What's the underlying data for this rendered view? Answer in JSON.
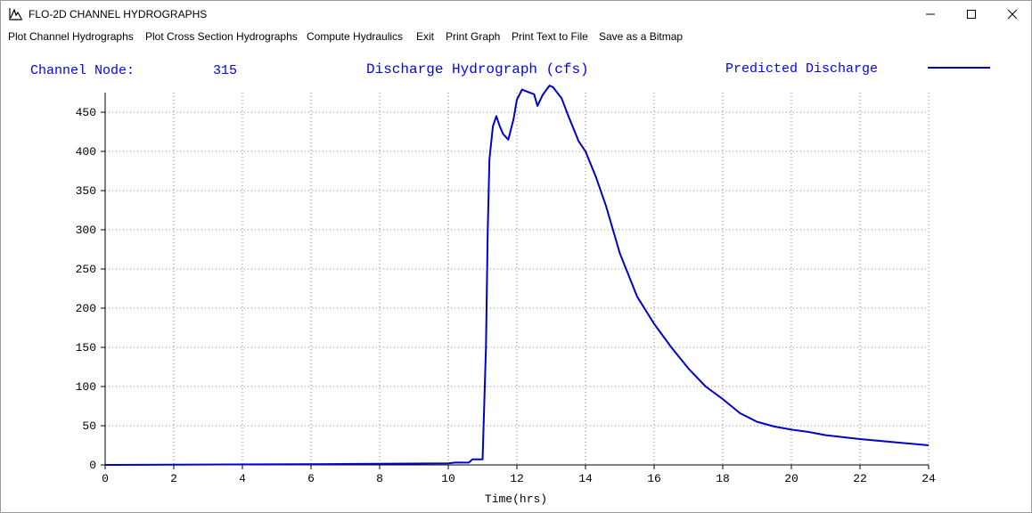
{
  "window": {
    "title": "FLO-2D CHANNEL HYDROGRAPHS",
    "icons": {
      "app": "hydrograph-app-icon",
      "minimize": "minimize-icon",
      "maximize": "maximize-icon",
      "close": "close-icon"
    }
  },
  "menu": {
    "items": [
      {
        "label": "Plot Channel Hydrographs"
      },
      {
        "label": "Plot Cross Section Hydrographs"
      },
      {
        "label": "Compute Hydraulics"
      },
      {
        "label": "Exit"
      },
      {
        "label": "Print Graph"
      },
      {
        "label": "Print Text to File"
      },
      {
        "label": "Save as a Bitmap"
      }
    ]
  },
  "header": {
    "node_label": "Channel Node:",
    "node_value": "315",
    "chart_title": "Discharge Hydrograph (cfs)",
    "legend_label": "Predicted Discharge"
  },
  "colors": {
    "series": "#0000cc",
    "header_text": "#0000ff",
    "axis": "#000000",
    "grid": "#808080"
  },
  "chart_data": {
    "type": "line",
    "title": "Discharge Hydrograph (cfs)",
    "xlabel": "Time(hrs)",
    "ylabel": "",
    "xlim": [
      0,
      24
    ],
    "ylim": [
      0,
      475
    ],
    "xticks": [
      0,
      2,
      4,
      6,
      8,
      10,
      12,
      14,
      16,
      18,
      20,
      22,
      24
    ],
    "yticks": [
      0,
      50,
      100,
      150,
      200,
      250,
      300,
      350,
      400,
      450
    ],
    "grid": true,
    "legend_position": "top-right",
    "series": [
      {
        "name": "Predicted Discharge",
        "x": [
          0,
          6.5,
          10.0,
          10.2,
          10.6,
          10.7,
          11.0,
          11.1,
          11.15,
          11.2,
          11.3,
          11.4,
          11.5,
          11.6,
          11.75,
          11.9,
          12.0,
          12.15,
          12.25,
          12.5,
          12.6,
          12.75,
          12.95,
          13.05,
          13.3,
          13.5,
          13.8,
          14.0,
          14.3,
          14.6,
          15.0,
          15.5,
          16.0,
          16.5,
          17.0,
          17.5,
          18.0,
          18.5,
          19.0,
          19.5,
          20.0,
          20.5,
          21.0,
          22.0,
          23.0,
          24.0
        ],
        "y": [
          0,
          1,
          2,
          3,
          3,
          7,
          7,
          150,
          300,
          390,
          432,
          445,
          432,
          422,
          415,
          441,
          466,
          479,
          477,
          473,
          458,
          472,
          484,
          482,
          468,
          445,
          413,
          400,
          368,
          330,
          270,
          215,
          180,
          150,
          123,
          100,
          84,
          66,
          55,
          49,
          45,
          42,
          38,
          33,
          29,
          25
        ]
      }
    ]
  }
}
